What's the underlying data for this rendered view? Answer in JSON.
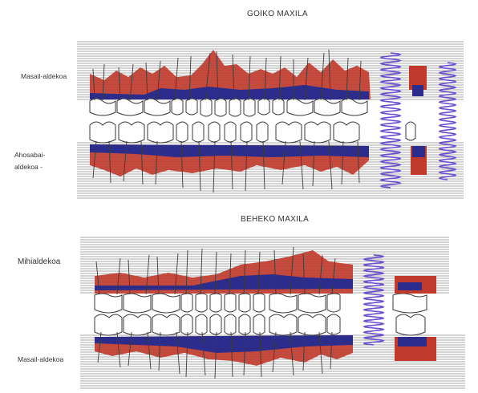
{
  "upper_jaw": {
    "title": "GOIKO MAXILA",
    "label_top": "Masail-aldekoa",
    "label_bottom_line1": "Ahosabai-",
    "label_bottom_line2": "aldekoa -"
  },
  "lower_jaw": {
    "title": "BEHEKO MAXILA",
    "label_top": "Mihialdekoa",
    "label_bottom": "Masail-aldekoa"
  },
  "colors": {
    "gum_red": "#c0392b",
    "bone_blue": "#2c2c8c",
    "spring_violet": "#6a4fd0",
    "line_ink": "#3a3a3a"
  }
}
